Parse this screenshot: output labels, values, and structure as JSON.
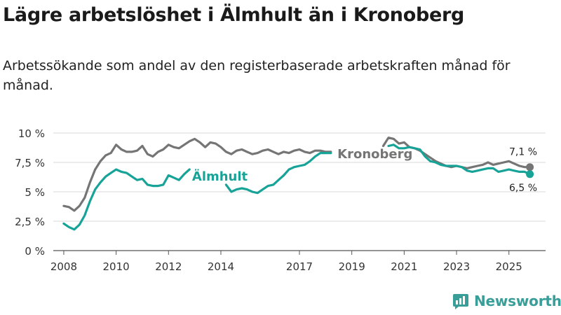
{
  "title": "Lägre arbetslöshet i Älmhult än i Kronoberg",
  "subtitle": "Arbetssökande som andel av den registerbaserade arbetskraften månad för månad.",
  "brand": {
    "name": "Newsworthy",
    "icon": "newsworthy-logo-icon",
    "color": "#3a9e98"
  },
  "chart_data": {
    "type": "line",
    "title": "Lägre arbetslöshet i Älmhult än i Kronoberg",
    "xlabel": "",
    "ylabel": "",
    "xlim": [
      2007.6,
      2026.4
    ],
    "ylim": [
      0,
      10
    ],
    "grid": true,
    "x_ticks": [
      2008,
      2010,
      2012,
      2014,
      2017,
      2019,
      2021,
      2023,
      2025
    ],
    "x_tick_labels": [
      "2008",
      "2010",
      "2012",
      "2014",
      "2017",
      "2019",
      "2021",
      "2023",
      "2025"
    ],
    "y_ticks": [
      0,
      2.5,
      5,
      7.5,
      10
    ],
    "y_tick_labels": [
      "0 %",
      "2,5 %",
      "5 %",
      "7,5 %",
      "10 %"
    ],
    "series": [
      {
        "name": "Kronoberg",
        "color": "#757575",
        "end_label": "7,1 %",
        "x": [
          2008.0,
          2008.2,
          2008.4,
          2008.6,
          2008.8,
          2009.0,
          2009.2,
          2009.4,
          2009.6,
          2009.8,
          2010.0,
          2010.2,
          2010.4,
          2010.6,
          2010.8,
          2011.0,
          2011.2,
          2011.4,
          2011.6,
          2011.8,
          2012.0,
          2012.2,
          2012.4,
          2012.6,
          2012.8,
          2013.0,
          2013.2,
          2013.4,
          2013.6,
          2013.8,
          2014.0,
          2014.2,
          2014.4,
          2014.6,
          2014.8,
          2015.0,
          2015.2,
          2015.4,
          2015.6,
          2015.8,
          2016.0,
          2016.2,
          2016.4,
          2016.6,
          2016.8,
          2017.0,
          2017.2,
          2017.4,
          2017.6,
          2017.8,
          2018.0,
          2018.2,
          null,
          2020.2,
          2020.4,
          2020.6,
          2020.8,
          2021.0,
          2021.2,
          2021.4,
          2021.6,
          2021.8,
          2022.0,
          2022.2,
          2022.4,
          2022.6,
          2022.8,
          2023.0,
          2023.2,
          2023.4,
          2023.6,
          2023.8,
          2024.0,
          2024.2,
          2024.4,
          2024.6,
          2024.8,
          2025.0,
          2025.2,
          2025.4,
          2025.6,
          2025.8
        ],
        "values": [
          3.8,
          3.7,
          3.4,
          3.8,
          4.5,
          5.8,
          6.9,
          7.6,
          8.1,
          8.3,
          9.0,
          8.6,
          8.4,
          8.4,
          8.5,
          8.9,
          8.2,
          8.0,
          8.4,
          8.6,
          9.0,
          8.8,
          8.7,
          9.0,
          9.3,
          9.5,
          9.2,
          8.8,
          9.2,
          9.1,
          8.8,
          8.4,
          8.2,
          8.5,
          8.6,
          8.4,
          8.2,
          8.3,
          8.5,
          8.6,
          8.4,
          8.2,
          8.4,
          8.3,
          8.5,
          8.6,
          8.4,
          8.3,
          8.5,
          8.5,
          8.4,
          8.4,
          null,
          8.9,
          9.6,
          9.5,
          9.1,
          9.2,
          8.8,
          8.7,
          8.5,
          8.2,
          7.9,
          7.6,
          7.4,
          7.2,
          7.1,
          7.2,
          7.1,
          7.0,
          7.1,
          7.2,
          7.3,
          7.5,
          7.3,
          7.4,
          7.5,
          7.6,
          7.4,
          7.2,
          7.1,
          7.1
        ]
      },
      {
        "name": "Älmhult",
        "color": "#17a397",
        "end_label": "6,5 %",
        "x": [
          2008.0,
          2008.2,
          2008.4,
          2008.6,
          2008.8,
          2009.0,
          2009.2,
          2009.4,
          2009.6,
          2009.8,
          2010.0,
          2010.2,
          2010.4,
          2010.6,
          2010.8,
          2011.0,
          2011.2,
          2011.4,
          2011.6,
          2011.8,
          2012.0,
          2012.2,
          2012.4,
          2012.6,
          2012.8,
          null,
          2014.2,
          2014.4,
          2014.6,
          2014.8,
          2015.0,
          2015.2,
          2015.4,
          2015.6,
          2015.8,
          2016.0,
          2016.2,
          2016.4,
          2016.6,
          2016.8,
          2017.0,
          2017.2,
          2017.4,
          2017.6,
          2017.8,
          2018.0,
          2018.2,
          null,
          2020.4,
          2020.6,
          2020.8,
          2021.0,
          2021.2,
          2021.4,
          2021.6,
          2021.8,
          2022.0,
          2022.2,
          2022.4,
          2022.6,
          2022.8,
          2023.0,
          2023.2,
          2023.4,
          2023.6,
          2023.8,
          2024.0,
          2024.2,
          2024.4,
          2024.6,
          2024.8,
          2025.0,
          2025.2,
          2025.4,
          2025.6,
          2025.8
        ],
        "values": [
          2.3,
          2.0,
          1.8,
          2.2,
          3.0,
          4.2,
          5.2,
          5.8,
          6.3,
          6.6,
          6.9,
          6.7,
          6.6,
          6.3,
          6.0,
          6.1,
          5.6,
          5.5,
          5.5,
          5.6,
          6.4,
          6.2,
          6.0,
          6.5,
          6.9,
          null,
          5.6,
          5.0,
          5.2,
          5.3,
          5.2,
          5.0,
          4.9,
          5.2,
          5.5,
          5.6,
          6.0,
          6.4,
          6.9,
          7.1,
          7.2,
          7.3,
          7.6,
          8.0,
          8.3,
          8.3,
          8.3,
          null,
          8.9,
          9.0,
          8.7,
          8.7,
          8.8,
          8.7,
          8.6,
          8.0,
          7.6,
          7.5,
          7.3,
          7.2,
          7.2,
          7.2,
          7.1,
          6.8,
          6.7,
          6.8,
          6.9,
          7.0,
          7.0,
          6.7,
          6.8,
          6.9,
          6.8,
          6.7,
          6.7,
          6.5
        ]
      }
    ],
    "annotations": [
      {
        "text": "Kronoberg",
        "series": "Kronoberg"
      },
      {
        "text": "Älmhult",
        "series": "Älmhult"
      }
    ]
  }
}
